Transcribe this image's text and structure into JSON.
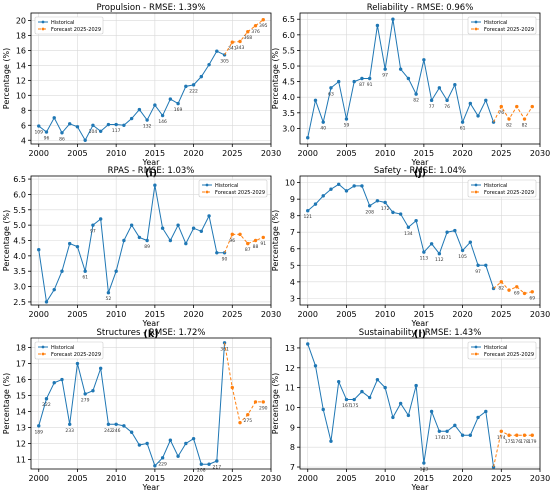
{
  "colors": {
    "historical": "#1f77b4",
    "forecast": "#ff7f0e",
    "axis": "#000000",
    "grid": "#d9d9d9"
  },
  "chart_data": [
    {
      "type": "line",
      "panel": "(i)",
      "title": "Propulsion - RMSE: 1.39%",
      "xlabel": "Year",
      "ylabel": "Percentage (%)",
      "xlim": [
        1999,
        2030
      ],
      "ylim": [
        3.5,
        21
      ],
      "xticks": [
        "2000",
        "2005",
        "2010",
        "2015",
        "2020",
        "2025",
        "2030"
      ],
      "yticks": [
        "4",
        "6",
        "8",
        "10",
        "12",
        "14",
        "16",
        "18",
        "20"
      ],
      "legend": {
        "position": "top-left",
        "entries": [
          "Historical",
          "Forecast 2025-2029"
        ]
      },
      "grid": true,
      "series": [
        {
          "name": "Historical",
          "x": [
            2000,
            2001,
            2002,
            2003,
            2004,
            2005,
            2006,
            2007,
            2008,
            2009,
            2010,
            2011,
            2012,
            2013,
            2014,
            2015,
            2016,
            2017,
            2018,
            2019,
            2020,
            2021,
            2022,
            2023,
            2024
          ],
          "y": [
            5.9,
            5.1,
            7.0,
            5.0,
            6.2,
            5.8,
            4.0,
            6.0,
            5.2,
            6.1,
            6.1,
            6.0,
            6.9,
            8.1,
            6.7,
            8.7,
            7.3,
            9.5,
            8.9,
            11.2,
            11.4,
            12.5,
            14.1,
            15.9,
            15.4
          ],
          "labels": [
            "109",
            "96",
            "",
            "86",
            "",
            "",
            "",
            "104",
            "",
            "",
            "117",
            "",
            "",
            "",
            "132",
            "",
            "146",
            "",
            "169",
            "",
            "222",
            "",
            "",
            "",
            "305"
          ]
        },
        {
          "name": "Forecast 2025-2029",
          "x": [
            2024,
            2025,
            2026,
            2027,
            2028,
            2029
          ],
          "y": [
            15.4,
            17.1,
            17.2,
            18.5,
            19.3,
            20.1
          ],
          "labels": [
            "",
            "341",
            "343",
            "368",
            "376",
            "395"
          ]
        }
      ]
    },
    {
      "type": "line",
      "panel": "(j)",
      "title": "Reliability - RMSE: 0.96%",
      "xlabel": "Year",
      "ylabel": "Percentage (%)",
      "xlim": [
        1999,
        2030
      ],
      "ylim": [
        2.5,
        6.7
      ],
      "xticks": [
        "2000",
        "2005",
        "2010",
        "2015",
        "2020",
        "2025",
        "2030"
      ],
      "yticks": [
        "3.0",
        "3.5",
        "4.0",
        "4.5",
        "5.0",
        "5.5",
        "6.0",
        "6.5"
      ],
      "legend": {
        "position": "top-right",
        "entries": [
          "Historical",
          "Forecast 2025-2029"
        ]
      },
      "grid": true,
      "series": [
        {
          "name": "Historical",
          "x": [
            2000,
            2001,
            2002,
            2003,
            2004,
            2005,
            2006,
            2007,
            2008,
            2009,
            2010,
            2011,
            2012,
            2013,
            2014,
            2015,
            2016,
            2017,
            2018,
            2019,
            2020,
            2021,
            2022,
            2023,
            2024
          ],
          "y": [
            2.7,
            3.9,
            3.2,
            4.3,
            4.5,
            3.3,
            4.5,
            4.6,
            4.6,
            6.3,
            4.9,
            6.5,
            4.9,
            4.6,
            4.1,
            5.2,
            3.9,
            4.3,
            3.9,
            4.4,
            3.2,
            3.8,
            3.4,
            3.9,
            3.2
          ],
          "labels": [
            "",
            "",
            "40",
            "63",
            "",
            "59",
            "",
            "87",
            "91",
            "",
            "97",
            "",
            "",
            "",
            "82",
            "",
            "77",
            "",
            "76",
            "",
            "61",
            "",
            "",
            "",
            ""
          ]
        },
        {
          "name": "Forecast 2025-2029",
          "x": [
            2024,
            2025,
            2026,
            2027,
            2028,
            2029
          ],
          "y": [
            3.2,
            3.7,
            3.3,
            3.7,
            3.3,
            3.7
          ],
          "labels": [
            "",
            "76",
            "82",
            "",
            "82",
            ""
          ]
        }
      ]
    },
    {
      "type": "line",
      "panel": "(k)",
      "title": "RPAS - RMSE: 1.03%",
      "xlabel": "Year",
      "ylabel": "Percentage (%)",
      "xlim": [
        1999,
        2030
      ],
      "ylim": [
        2.4,
        6.6
      ],
      "xticks": [
        "2000",
        "2005",
        "2010",
        "2015",
        "2020",
        "2025",
        "2030"
      ],
      "yticks": [
        "2.5",
        "3.0",
        "3.5",
        "4.0",
        "4.5",
        "5.0",
        "5.5",
        "6.0",
        "6.5"
      ],
      "legend": {
        "position": "top-right",
        "entries": [
          "Historical",
          "Forecast 2025-2029"
        ]
      },
      "grid": true,
      "series": [
        {
          "name": "Historical",
          "x": [
            2000,
            2001,
            2002,
            2003,
            2004,
            2005,
            2006,
            2007,
            2008,
            2009,
            2010,
            2011,
            2012,
            2013,
            2014,
            2015,
            2016,
            2017,
            2018,
            2019,
            2020,
            2021,
            2022,
            2023,
            2024
          ],
          "y": [
            4.2,
            2.5,
            2.9,
            3.5,
            4.4,
            4.3,
            3.5,
            5.0,
            5.2,
            2.8,
            3.5,
            4.5,
            5.0,
            4.6,
            4.5,
            6.3,
            4.9,
            4.5,
            5.0,
            4.4,
            4.9,
            4.8,
            5.3,
            4.1,
            4.1
          ],
          "labels": [
            "",
            "",
            "",
            "",
            "",
            "",
            "61",
            "97",
            "",
            "52",
            "",
            "",
            "",
            "",
            "89",
            "",
            "",
            "",
            "",
            "",
            "",
            "",
            "",
            "",
            "90"
          ]
        },
        {
          "name": "Forecast 2025-2029",
          "x": [
            2024,
            2025,
            2026,
            2027,
            2028,
            2029
          ],
          "y": [
            4.1,
            4.7,
            4.7,
            4.4,
            4.5,
            4.6
          ],
          "labels": [
            "",
            "96",
            "",
            "87",
            "88",
            "91"
          ]
        }
      ]
    },
    {
      "type": "line",
      "panel": "(l)",
      "title": "Safety - RMSE: 1.04%",
      "xlabel": "Year",
      "ylabel": "Percentage (%)",
      "xlim": [
        1999,
        2030
      ],
      "ylim": [
        2.6,
        10.4
      ],
      "xticks": [
        "2000",
        "2005",
        "2010",
        "2015",
        "2020",
        "2025",
        "2030"
      ],
      "yticks": [
        "3",
        "4",
        "5",
        "6",
        "7",
        "8",
        "9",
        "10"
      ],
      "legend": {
        "position": "top-right",
        "entries": [
          "Historical",
          "Forecast 2025-2029"
        ]
      },
      "grid": true,
      "series": [
        {
          "name": "Historical",
          "x": [
            2000,
            2001,
            2002,
            2003,
            2004,
            2005,
            2006,
            2007,
            2008,
            2009,
            2010,
            2011,
            2012,
            2013,
            2014,
            2015,
            2016,
            2017,
            2018,
            2019,
            2020,
            2021,
            2022,
            2023,
            2024
          ],
          "y": [
            8.3,
            8.7,
            9.2,
            9.6,
            9.9,
            9.5,
            9.8,
            9.8,
            8.6,
            8.9,
            8.8,
            8.2,
            8.1,
            7.3,
            7.7,
            5.8,
            6.3,
            5.7,
            7.0,
            7.1,
            5.9,
            6.4,
            5.0,
            5.0,
            3.6
          ],
          "labels": [
            "121",
            "",
            "",
            "",
            "",
            "",
            "",
            "",
            "208",
            "",
            "172",
            "",
            "",
            "134",
            "",
            "113",
            "",
            "112",
            "",
            "",
            "105",
            "",
            "97",
            "",
            ""
          ]
        },
        {
          "name": "Forecast 2025-2029",
          "x": [
            2024,
            2025,
            2026,
            2027,
            2028,
            2029
          ],
          "y": [
            3.6,
            4.0,
            3.5,
            3.7,
            3.3,
            3.4
          ],
          "labels": [
            "",
            "82",
            "",
            "69",
            "",
            "69"
          ]
        }
      ]
    },
    {
      "type": "line",
      "panel": "(m)",
      "title": "Structures - RMSE: 1.72%",
      "xlabel": "Year",
      "ylabel": "Percentage (%)",
      "xlim": [
        1999,
        2030
      ],
      "ylim": [
        10.4,
        18.6
      ],
      "xticks": [
        "2000",
        "2005",
        "2010",
        "2015",
        "2020",
        "2025",
        "2030"
      ],
      "yticks": [
        "11",
        "12",
        "13",
        "14",
        "15",
        "16",
        "17",
        "18"
      ],
      "legend": {
        "position": "top-left",
        "entries": [
          "Historical",
          "Forecast 2025-2029"
        ]
      },
      "grid": true,
      "series": [
        {
          "name": "Historical",
          "x": [
            2000,
            2001,
            2002,
            2003,
            2004,
            2005,
            2006,
            2007,
            2008,
            2009,
            2010,
            2011,
            2012,
            2013,
            2014,
            2015,
            2016,
            2017,
            2018,
            2019,
            2020,
            2021,
            2022,
            2023,
            2024
          ],
          "y": [
            13.1,
            14.8,
            15.8,
            16.0,
            13.2,
            17.0,
            15.1,
            15.3,
            16.7,
            13.2,
            13.2,
            13.1,
            12.7,
            11.9,
            12.0,
            10.6,
            11.1,
            12.2,
            11.2,
            12.0,
            12.3,
            10.7,
            10.7,
            10.9,
            18.3
          ],
          "labels": [
            "189",
            "222",
            "",
            "",
            "233",
            "",
            "279",
            "",
            "",
            "242",
            "246",
            "",
            "",
            "",
            "",
            "",
            "229",
            "",
            "",
            "",
            "",
            "208",
            "",
            "217",
            "361"
          ]
        },
        {
          "name": "Forecast 2025-2029",
          "x": [
            2024,
            2025,
            2026,
            2027,
            2028,
            2029
          ],
          "y": [
            18.3,
            15.5,
            13.3,
            13.8,
            14.6,
            14.6
          ],
          "labels": [
            "",
            "",
            "",
            "275",
            "",
            "290"
          ]
        }
      ]
    },
    {
      "type": "line",
      "panel": "(n)",
      "title": "Sustainability - RMSE: 1.43%",
      "xlabel": "Year",
      "ylabel": "Percentage (%)",
      "xlim": [
        1999,
        2030
      ],
      "ylim": [
        6.9,
        13.5
      ],
      "xticks": [
        "2000",
        "2005",
        "2010",
        "2015",
        "2020",
        "2025",
        "2030"
      ],
      "yticks": [
        "7",
        "8",
        "9",
        "10",
        "11",
        "12",
        "13"
      ],
      "legend": {
        "position": "top-right",
        "entries": [
          "Historical",
          "Forecast 2025-2029"
        ]
      },
      "grid": true,
      "series": [
        {
          "name": "Historical",
          "x": [
            2000,
            2001,
            2002,
            2003,
            2004,
            2005,
            2006,
            2007,
            2008,
            2009,
            2010,
            2011,
            2012,
            2013,
            2014,
            2015,
            2016,
            2017,
            2018,
            2019,
            2020,
            2021,
            2022,
            2023,
            2024
          ],
          "y": [
            13.2,
            12.1,
            9.9,
            8.3,
            11.3,
            10.4,
            10.4,
            10.8,
            10.5,
            11.4,
            11.0,
            9.5,
            10.2,
            9.6,
            11.1,
            7.2,
            9.8,
            8.8,
            8.8,
            9.1,
            8.6,
            8.6,
            9.5,
            9.8,
            7.0
          ],
          "labels": [
            "",
            "",
            "",
            "",
            "",
            "167",
            "175",
            "",
            "",
            "",
            "",
            "",
            "",
            "",
            "",
            "143",
            "",
            "174",
            "171",
            "",
            "",
            "",
            "",
            "",
            ""
          ]
        },
        {
          "name": "Forecast 2025-2029",
          "x": [
            2024,
            2025,
            2026,
            2027,
            2028,
            2029
          ],
          "y": [
            7.0,
            8.8,
            8.6,
            8.6,
            8.6,
            8.6
          ],
          "labels": [
            "",
            "174",
            "175",
            "176",
            "178",
            "179"
          ]
        }
      ]
    }
  ]
}
